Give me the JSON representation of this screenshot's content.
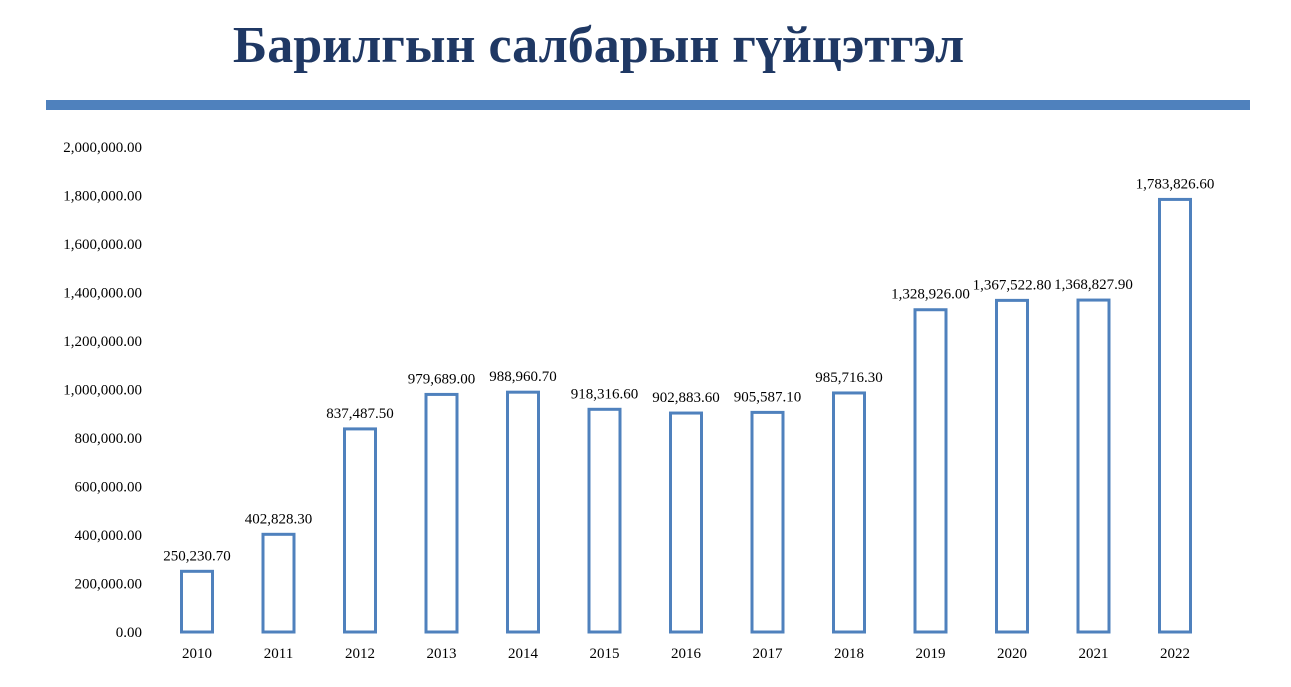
{
  "title": "Барилгын салбарын гүйцэтгэл",
  "colors": {
    "title": "#1f3864",
    "rule": "#4f81bd",
    "bar_stroke": "#4f81bd",
    "bar_fill": "#ffffff"
  },
  "chart_data": {
    "type": "bar",
    "title": "",
    "xlabel": "",
    "ylabel": "",
    "ylim": [
      0,
      2000000
    ],
    "grid": false,
    "legend": "none",
    "categories": [
      "2010",
      "2011",
      "2012",
      "2013",
      "2014",
      "2015",
      "2016",
      "2017",
      "2018",
      "2019",
      "2020",
      "2021",
      "2022"
    ],
    "values": [
      250230.7,
      402828.3,
      837487.5,
      979689.0,
      988960.7,
      918316.6,
      902883.6,
      905587.1,
      985716.3,
      1328926.0,
      1367522.8,
      1368827.9,
      1783826.6
    ],
    "value_labels": [
      "250,230.70",
      "402,828.30",
      "837,487.50",
      "979,689.00",
      "988,960.70",
      "918,316.60",
      "902,883.60",
      "905,587.10",
      "985,716.30",
      "1,328,926.00",
      "1,367,522.80",
      "1,368,827.90",
      "1,783,826.60"
    ],
    "y_ticks": [
      "0.00",
      "200,000.00",
      "400,000.00",
      "600,000.00",
      "800,000.00",
      "1,000,000.00",
      "1,200,000.00",
      "1,400,000.00",
      "1,600,000.00",
      "1,800,000.00",
      "2,000,000.00"
    ]
  }
}
